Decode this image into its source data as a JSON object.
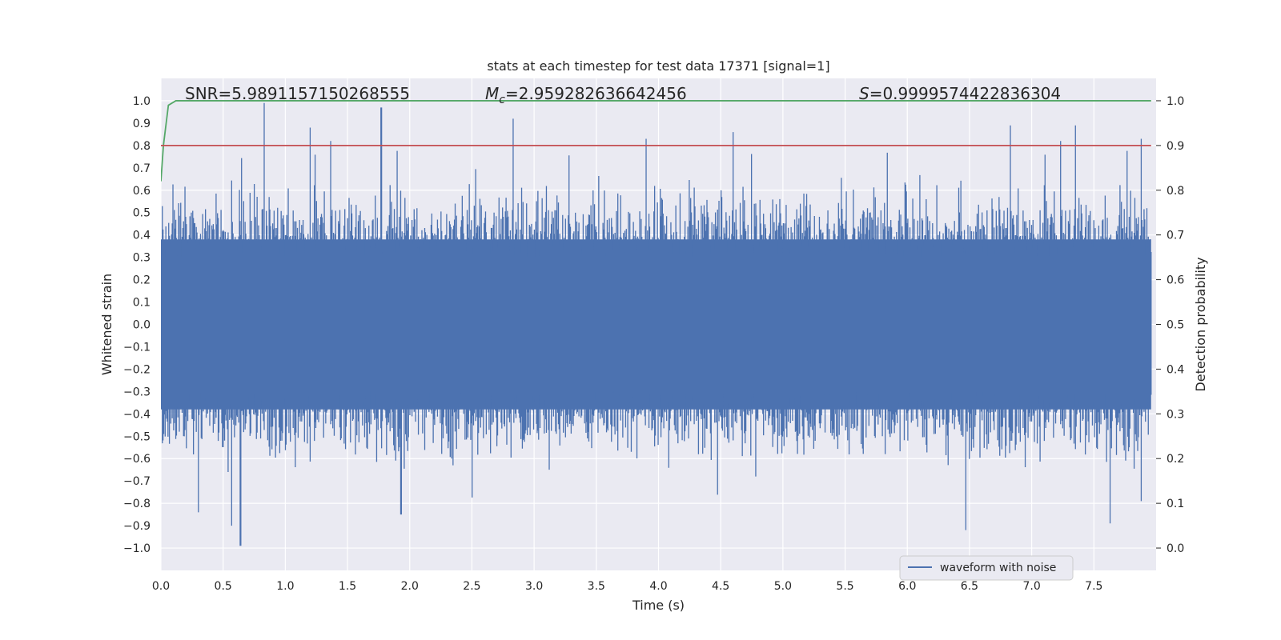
{
  "chart_data": {
    "type": "line",
    "title": "stats at each timestep for test data 17371 [signal=1]",
    "xlabel": "Time (s)",
    "ylabel": "Whitened strain",
    "y2label": "Detection probability",
    "xlim": [
      0.0,
      8.0
    ],
    "ylim": [
      -1.1,
      1.1
    ],
    "y2lim": [
      -0.05,
      1.05
    ],
    "xticks": [
      "0.0",
      "0.5",
      "1.0",
      "1.5",
      "2.0",
      "2.5",
      "3.0",
      "3.5",
      "4.0",
      "4.5",
      "5.0",
      "5.5",
      "6.0",
      "6.5",
      "7.0",
      "7.5"
    ],
    "yticks": [
      "1.0",
      "0.9",
      "0.8",
      "0.7",
      "0.6",
      "0.5",
      "0.4",
      "0.3",
      "0.2",
      "0.1",
      "0.0",
      "−0.1",
      "−0.2",
      "−0.3",
      "−0.4",
      "−0.5",
      "−0.6",
      "−0.7",
      "−0.8",
      "−0.9",
      "−1.0"
    ],
    "y2ticks": [
      "1.0",
      "0.9",
      "0.8",
      "0.7",
      "0.6",
      "0.5",
      "0.4",
      "0.3",
      "0.2",
      "0.1",
      "0.0"
    ],
    "grid": true,
    "legend_position": "lower-right",
    "annotations": {
      "snr": "SNR=5.9891157150268555",
      "mc_symbol": "M",
      "mc_subscript": "c",
      "mc_value": "=2.959282636642456",
      "s_symbol": "S",
      "s_value": "=0.9999574422836304"
    },
    "series": [
      {
        "name": "waveform with noise",
        "axis": "left",
        "color": "#4c72b0",
        "style": "dense noise",
        "x_range": [
          0.0,
          7.96
        ],
        "envelope_typical": [
          -0.45,
          0.45
        ],
        "peaks": [
          [
            0.83,
            0.99
          ],
          [
            1.2,
            0.88
          ],
          [
            1.77,
            0.97
          ],
          [
            2.83,
            0.92
          ],
          [
            3.9,
            0.83
          ],
          [
            4.6,
            0.86
          ],
          [
            6.83,
            0.89
          ],
          [
            7.35,
            0.89
          ],
          [
            7.88,
            0.83
          ]
        ],
        "troughs": [
          [
            0.3,
            -0.84
          ],
          [
            0.57,
            -0.9
          ],
          [
            0.64,
            -0.99
          ],
          [
            1.93,
            -0.85
          ],
          [
            6.47,
            -0.92
          ],
          [
            7.63,
            -0.89
          ],
          [
            7.88,
            -0.79
          ]
        ]
      },
      {
        "axis": "right",
        "color": "#55a868",
        "x": [
          0.0,
          0.02,
          0.06,
          0.12,
          0.5,
          7.96
        ],
        "y": [
          0.82,
          0.9,
          0.99,
          1.0,
          1.0,
          1.0
        ]
      },
      {
        "axis": "right",
        "color": "#c44e52",
        "x": [
          0.0,
          7.96
        ],
        "y": [
          0.9,
          0.9
        ]
      }
    ]
  },
  "colors": {
    "axes_bg": "#eaeaf2",
    "grid": "#ffffff",
    "waveform": "#4c72b0",
    "probability": "#55a868",
    "threshold": "#c44e52"
  }
}
